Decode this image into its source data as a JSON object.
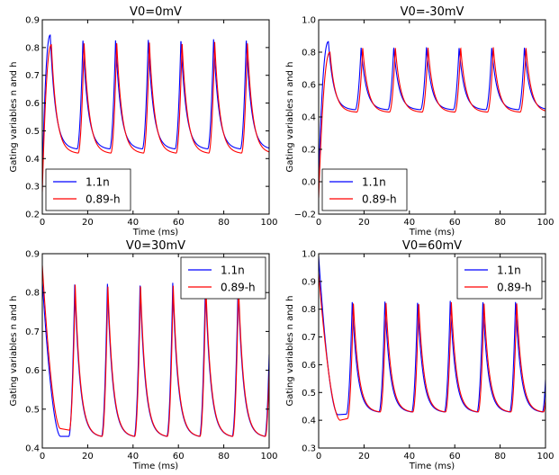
{
  "chart_data": [
    {
      "type": "line",
      "title": "V0=0mV",
      "xlabel": "Time (ms)",
      "ylabel": "Gating variables n and h",
      "xlim": [
        0,
        100
      ],
      "ylim": [
        0.2,
        0.9
      ],
      "xticks": [
        "0",
        "20",
        "40",
        "60",
        "80",
        "100"
      ],
      "yticks": [
        "0.2",
        "0.3",
        "0.4",
        "0.5",
        "0.6",
        "0.7",
        "0.8",
        "0.9"
      ],
      "legend_position": "bottom-left",
      "colors": {
        "blue": "#0000ff",
        "red": "#ff0000"
      },
      "series": [
        {
          "name": "1.1n",
          "color": "#0000ff",
          "start": 0.33,
          "peak": 0.845,
          "first_peak_t": 3.5,
          "trough": 0.435,
          "peak_value": 0.83,
          "period": 14.4
        },
        {
          "name": "0.89-h",
          "color": "#ff0000",
          "start": 0.28,
          "peak": 0.81,
          "first_peak_t": 4.0,
          "trough": 0.42,
          "peak_value": 0.82,
          "period": 14.4
        }
      ]
    },
    {
      "type": "line",
      "title": "V0=-30mV",
      "xlabel": "Time (ms)",
      "ylabel": "Gating variables n and h",
      "xlim": [
        0,
        100
      ],
      "ylim": [
        -0.2,
        1.0
      ],
      "xticks": [
        "0",
        "20",
        "40",
        "60",
        "80",
        "100"
      ],
      "yticks": [
        "−0.2",
        "0.0",
        "0.2",
        "0.4",
        "0.6",
        "0.8",
        "1.0"
      ],
      "legend_position": "bottom-right",
      "colors": {
        "blue": "#0000ff",
        "red": "#ff0000"
      },
      "series": [
        {
          "name": "1.1n",
          "color": "#0000ff",
          "start": 0.03,
          "peak": 0.865,
          "first_peak_t": 4.3,
          "trough": 0.445,
          "peak_value": 0.83,
          "period": 14.4
        },
        {
          "name": "0.89-h",
          "color": "#ff0000",
          "start": -0.1,
          "peak": 0.8,
          "first_peak_t": 5.0,
          "trough": 0.43,
          "peak_value": 0.83,
          "period": 14.4
        }
      ]
    },
    {
      "type": "line",
      "title": "V0=30mV",
      "xlabel": "Time (ms)",
      "ylabel": "Gating variables n and h",
      "xlim": [
        0,
        100
      ],
      "ylim": [
        0.4,
        0.9
      ],
      "xticks": [
        "0",
        "20",
        "40",
        "60",
        "80",
        "100"
      ],
      "yticks": [
        "0.4",
        "0.5",
        "0.6",
        "0.7",
        "0.8",
        "0.9"
      ],
      "legend_position": "top-right",
      "colors": {
        "blue": "#0000ff",
        "red": "#ff0000"
      },
      "series": [
        {
          "name": "1.1n",
          "color": "#0000ff",
          "start": 0.83,
          "first_trough": 0.43,
          "first_trough_t": 8.0,
          "trough": 0.43,
          "peak_value": 0.825,
          "first_peak_t": 14.3,
          "period": 14.4
        },
        {
          "name": "0.89-h",
          "color": "#ff0000",
          "start": 0.87,
          "first_trough": 0.45,
          "first_trough_t": 8.0,
          "trough": 0.43,
          "peak_value": 0.82,
          "first_peak_t": 14.5,
          "period": 14.4
        }
      ]
    },
    {
      "type": "line",
      "title": "V0=60mV",
      "xlabel": "Time (ms)",
      "ylabel": "Gating variables n and h",
      "xlim": [
        0,
        100
      ],
      "ylim": [
        0.3,
        1.0
      ],
      "xticks": [
        "0",
        "20",
        "40",
        "60",
        "80",
        "100"
      ],
      "yticks": [
        "0.3",
        "0.4",
        "0.5",
        "0.6",
        "0.7",
        "0.8",
        "0.9",
        "1.0"
      ],
      "legend_position": "top-right",
      "colors": {
        "blue": "#0000ff",
        "red": "#ff0000"
      },
      "series": [
        {
          "name": "1.1n",
          "color": "#0000ff",
          "start": 0.99,
          "first_trough": 0.42,
          "first_trough_t": 8.5,
          "trough": 0.43,
          "peak_value": 0.83,
          "first_peak_t": 14.8,
          "period": 14.4
        },
        {
          "name": "0.89-h",
          "color": "#ff0000",
          "start": 0.93,
          "first_trough": 0.4,
          "first_trough_t": 9.5,
          "trough": 0.43,
          "peak_value": 0.825,
          "first_peak_t": 15.3,
          "period": 14.4
        }
      ]
    }
  ]
}
